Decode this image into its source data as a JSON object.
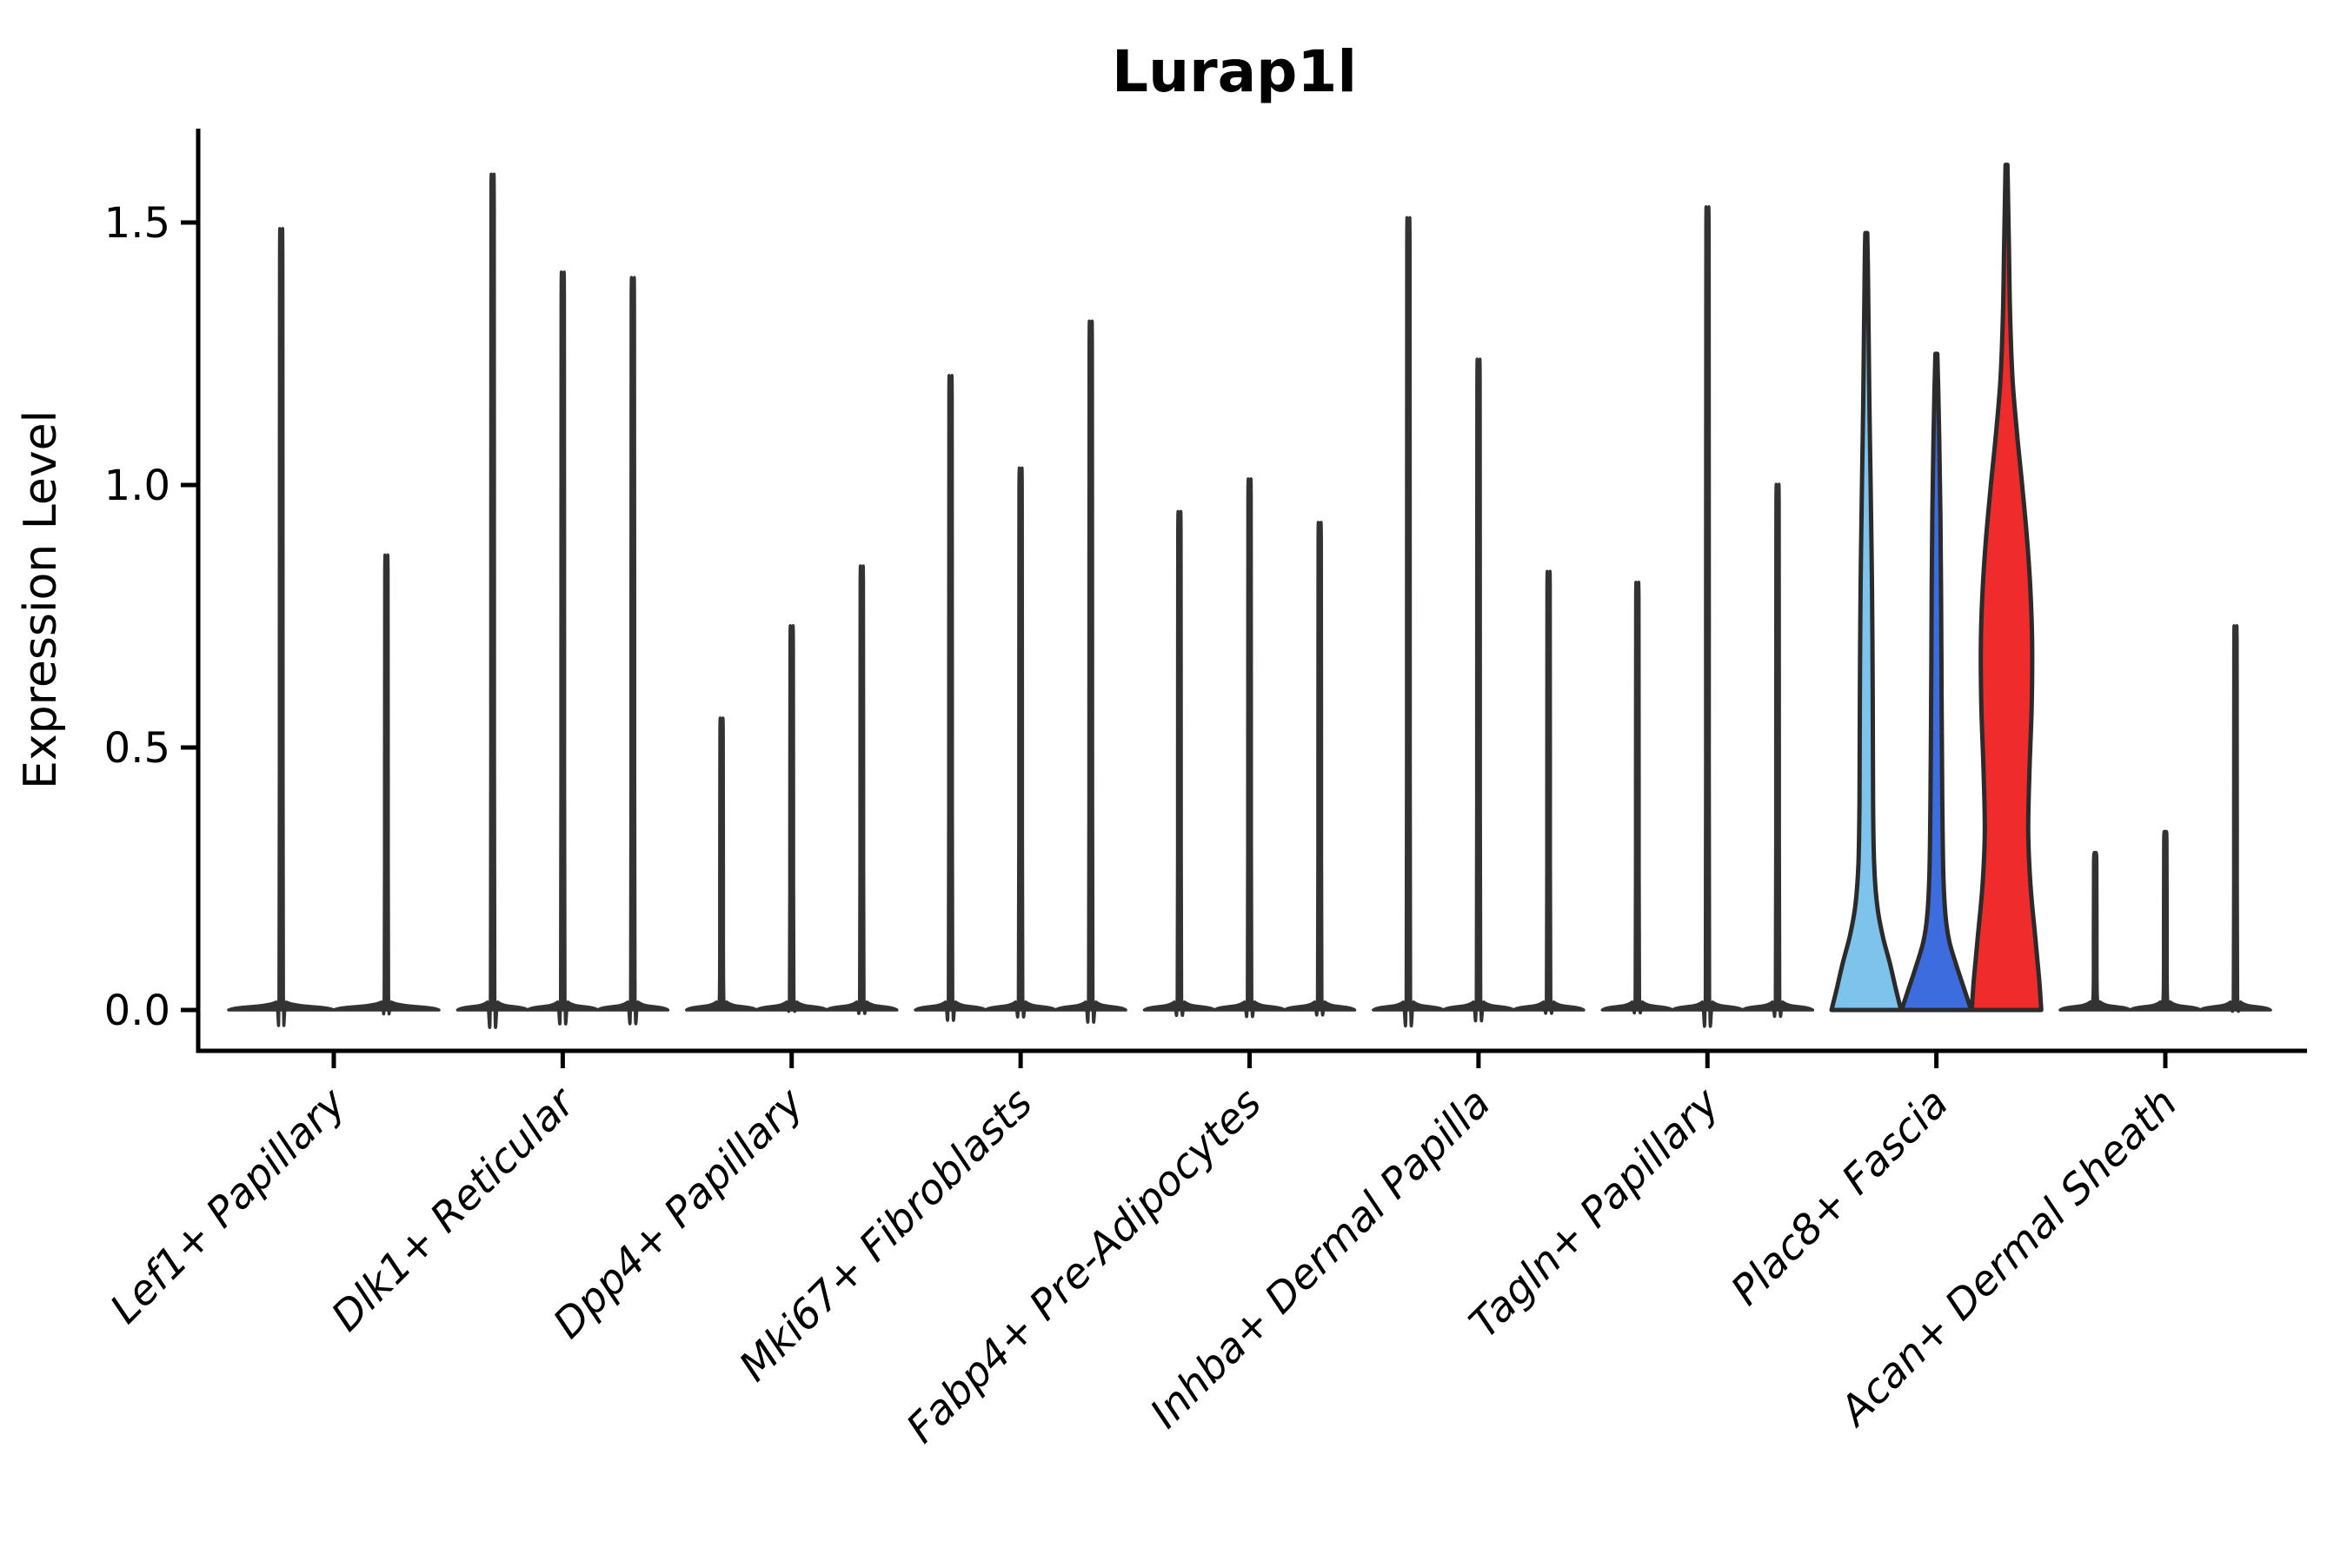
{
  "figure": {
    "title": "Lurap1l",
    "y_axis_label": "Expression Level"
  },
  "chart_data": {
    "type": "violin",
    "title": "Lurap1l",
    "xlabel": "",
    "ylabel": "Expression Level",
    "yticks": [
      0.0,
      0.5,
      1.0,
      1.5
    ],
    "ylim": [
      0,
      1.75
    ],
    "grid": false,
    "legend": "none",
    "colors": {
      "default_violin": "#333333",
      "outline": "#2b2b2b",
      "axis": "#000000",
      "highlight_fills": [
        "#7DC3EB",
        "#3D6CDF",
        "#F02B2B"
      ]
    },
    "categories": [
      {
        "label": "Lef1+ Papillary",
        "violins": [
          {
            "max": 1.45
          },
          {
            "max": 0.85
          }
        ]
      },
      {
        "label": "Dlk1+ Reticular",
        "violins": [
          {
            "max": 1.55
          },
          {
            "max": 1.37
          },
          {
            "max": 1.36
          }
        ]
      },
      {
        "label": "Dpp4+ Papillary",
        "violins": [
          {
            "max": 0.55
          },
          {
            "max": 0.72
          },
          {
            "max": 0.83
          }
        ]
      },
      {
        "label": "Mki67+ Fibroblasts",
        "violins": [
          {
            "max": 1.18
          },
          {
            "max": 1.01
          },
          {
            "max": 1.28
          }
        ]
      },
      {
        "label": "Fabp4+ Pre-Adipocytes",
        "violins": [
          {
            "max": 0.93
          },
          {
            "max": 0.99
          },
          {
            "max": 0.91
          }
        ]
      },
      {
        "label": "Inhba+ Dermal Papilla",
        "violins": [
          {
            "max": 1.47
          },
          {
            "max": 1.21
          },
          {
            "max": 0.82
          }
        ]
      },
      {
        "label": "Tagln+ Papillary",
        "violins": [
          {
            "max": 0.8
          },
          {
            "max": 1.49
          },
          {
            "max": 0.98
          }
        ]
      },
      {
        "label": "Plac8+ Fascia",
        "violins": [
          {
            "max": 1.48,
            "fill": "#7DC3EB",
            "profile": [
              [
                0,
                40
              ],
              [
                0.04,
                34
              ],
              [
                0.09,
                27
              ],
              [
                0.14,
                19
              ],
              [
                0.2,
                12.5
              ],
              [
                0.28,
                9
              ],
              [
                0.4,
                7.8
              ],
              [
                0.6,
                7.4
              ],
              [
                0.8,
                6.6
              ],
              [
                1.0,
                5
              ],
              [
                1.15,
                3.6
              ],
              [
                1.3,
                2.6
              ],
              [
                1.42,
                1.8
              ],
              [
                1.48,
                1.1
              ]
            ]
          },
          {
            "max": 1.25,
            "fill": "#3D6CDF",
            "profile": [
              [
                0,
                40
              ],
              [
                0.04,
                32
              ],
              [
                0.08,
                24
              ],
              [
                0.13,
                15
              ],
              [
                0.18,
                10.5
              ],
              [
                0.26,
                8
              ],
              [
                0.4,
                6.8
              ],
              [
                0.6,
                6
              ],
              [
                0.8,
                5.4
              ],
              [
                0.95,
                4.6
              ],
              [
                1.08,
                3.4
              ],
              [
                1.18,
                2.2
              ],
              [
                1.25,
                1.1
              ]
            ]
          },
          {
            "max": 1.61,
            "fill": "#F02B2B",
            "profile": [
              [
                0,
                40
              ],
              [
                0.06,
                37.5
              ],
              [
                0.14,
                33
              ],
              [
                0.24,
                27.5
              ],
              [
                0.34,
                25
              ],
              [
                0.46,
                26.5
              ],
              [
                0.58,
                29
              ],
              [
                0.7,
                29.5
              ],
              [
                0.8,
                27.5
              ],
              [
                0.9,
                23.5
              ],
              [
                1.0,
                18
              ],
              [
                1.1,
                12
              ],
              [
                1.2,
                7
              ],
              [
                1.32,
                4.2
              ],
              [
                1.45,
                2.8
              ],
              [
                1.61,
                1.1
              ]
            ]
          }
        ]
      },
      {
        "label": "Acan+ Dermal Sheath",
        "violins": [
          {
            "max": 0.3
          },
          {
            "max": 0.34
          },
          {
            "max": 0.72
          }
        ]
      }
    ]
  }
}
